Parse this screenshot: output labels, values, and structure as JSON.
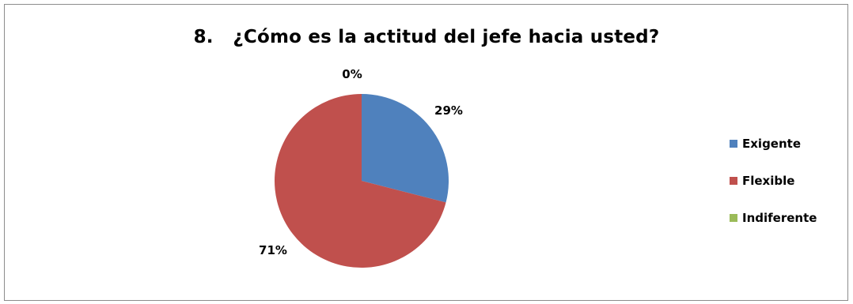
{
  "chart_data": {
    "type": "pie",
    "title": "8.   ¿Cómo es la actitud del jefe hacia usted?",
    "categories": [
      "Exigente",
      "Flexible",
      "Indiferente"
    ],
    "values": [
      29,
      71,
      0
    ],
    "labels": [
      "29%",
      "71%",
      "0%"
    ],
    "colors": [
      "#4f81bd",
      "#c0504d",
      "#9bbb59"
    ],
    "legend_position": "right"
  }
}
